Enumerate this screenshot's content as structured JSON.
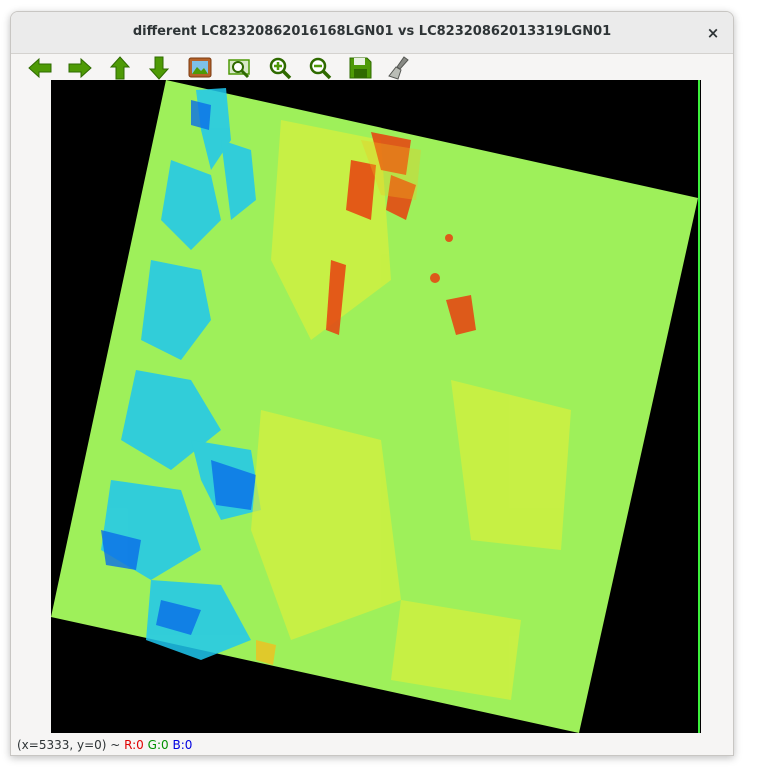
{
  "window": {
    "title": "different LC82320862016168LGN01 vs LC82320862013319LGN01",
    "close_symbol": "×"
  },
  "toolbar": [
    {
      "name": "back-icon",
      "color": "#4e9a06"
    },
    {
      "name": "forward-icon",
      "color": "#4e9a06"
    },
    {
      "name": "up-icon",
      "color": "#4e9a06"
    },
    {
      "name": "down-icon",
      "color": "#4e9a06"
    },
    {
      "name": "image-icon",
      "color": "#a0522d"
    },
    {
      "name": "zoom-fit-icon",
      "color": "#4e9a06"
    },
    {
      "name": "zoom-in-icon",
      "color": "#4e9a06"
    },
    {
      "name": "zoom-out-icon",
      "color": "#4e9a06"
    },
    {
      "name": "save-icon",
      "color": "#4e9a06"
    },
    {
      "name": "clear-icon",
      "color": "#888a85"
    }
  ],
  "status": {
    "coords": "(x=5333, y=0) ~ ",
    "r": "R:0",
    "g": "G:0",
    "b": "B:0"
  },
  "colors": {
    "base": "#9ef05a",
    "cold": "#1ec8f0",
    "mid": "#d8f03c",
    "hot": "#e84010"
  }
}
